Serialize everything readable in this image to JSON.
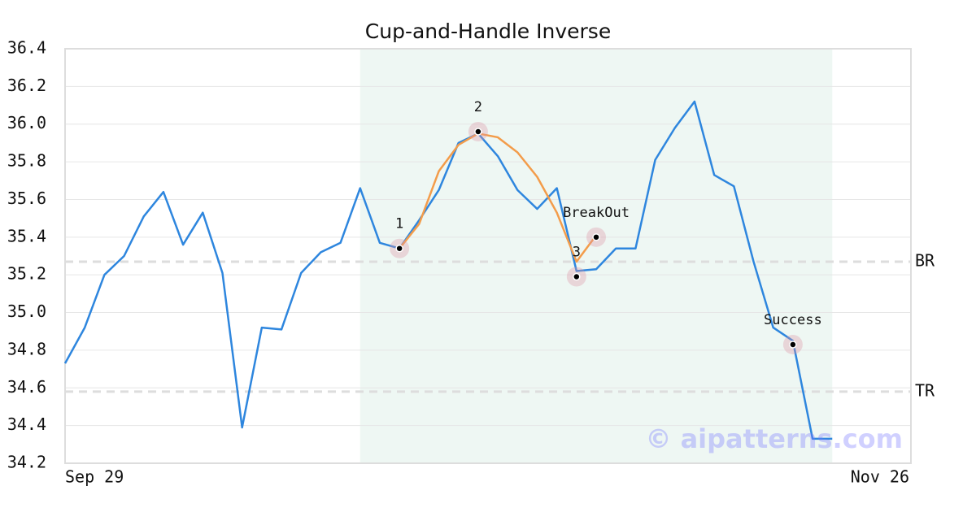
{
  "chart_data": {
    "type": "line",
    "title": "Cup-and-Handle Inverse",
    "xlim": [
      0,
      43
    ],
    "xticks": [
      {
        "value": 0,
        "label": "Sep 29"
      },
      {
        "value": 43,
        "label": "Nov 26"
      }
    ],
    "ylim": [
      34.2,
      36.4
    ],
    "yticks": [
      34.2,
      34.4,
      34.6,
      34.8,
      {
        "value": 35.0,
        "label": "35.0"
      },
      35.2,
      35.4,
      35.6,
      35.8,
      {
        "value": 36.0,
        "label": "36.0"
      },
      36.2,
      36.4
    ],
    "grid": true,
    "highlight": [
      15,
      39
    ],
    "series": [
      {
        "color": "#2e86de",
        "x": [
          0,
          1,
          2,
          3,
          4,
          5,
          6,
          7,
          8,
          9,
          10,
          11,
          12,
          13,
          14,
          15,
          16,
          17,
          18,
          19,
          20,
          21,
          22,
          23,
          24,
          25,
          26,
          27,
          28,
          29,
          30,
          31,
          32,
          33,
          34,
          35,
          36,
          37,
          38,
          39
        ],
        "values": [
          34.73,
          34.92,
          35.2,
          35.3,
          35.51,
          35.64,
          35.36,
          35.53,
          35.21,
          34.39,
          34.92,
          34.91,
          35.21,
          35.32,
          35.37,
          35.66,
          35.37,
          35.34,
          35.49,
          35.65,
          35.9,
          35.95,
          35.83,
          35.65,
          35.55,
          35.66,
          35.22,
          35.23,
          35.34,
          35.34,
          35.81,
          35.98,
          36.12,
          35.73,
          35.67,
          35.27,
          34.92,
          34.85,
          34.33,
          34.33
        ]
      },
      {
        "color": "#f39c4a",
        "x": [
          17,
          18,
          19,
          20,
          21,
          22,
          23,
          24,
          25,
          26,
          27
        ],
        "values": [
          35.34,
          35.47,
          35.75,
          35.89,
          35.95,
          35.93,
          35.85,
          35.72,
          35.53,
          35.27,
          35.41
        ]
      }
    ],
    "annotations": [
      {
        "label": "1",
        "x": 17,
        "y": 35.34
      },
      {
        "label": "2",
        "x": 21,
        "y": 35.96
      },
      {
        "label": "3",
        "x": 26,
        "y": 35.19
      },
      {
        "label": "BreakOut",
        "x": 27,
        "y": 35.4
      },
      {
        "label": "Success",
        "x": 37,
        "y": 34.83
      }
    ],
    "hlines": [
      {
        "label": "BR",
        "value": 35.27
      },
      {
        "label": "TR",
        "value": 34.58
      }
    ],
    "watermark": "© aipatterns.com"
  }
}
